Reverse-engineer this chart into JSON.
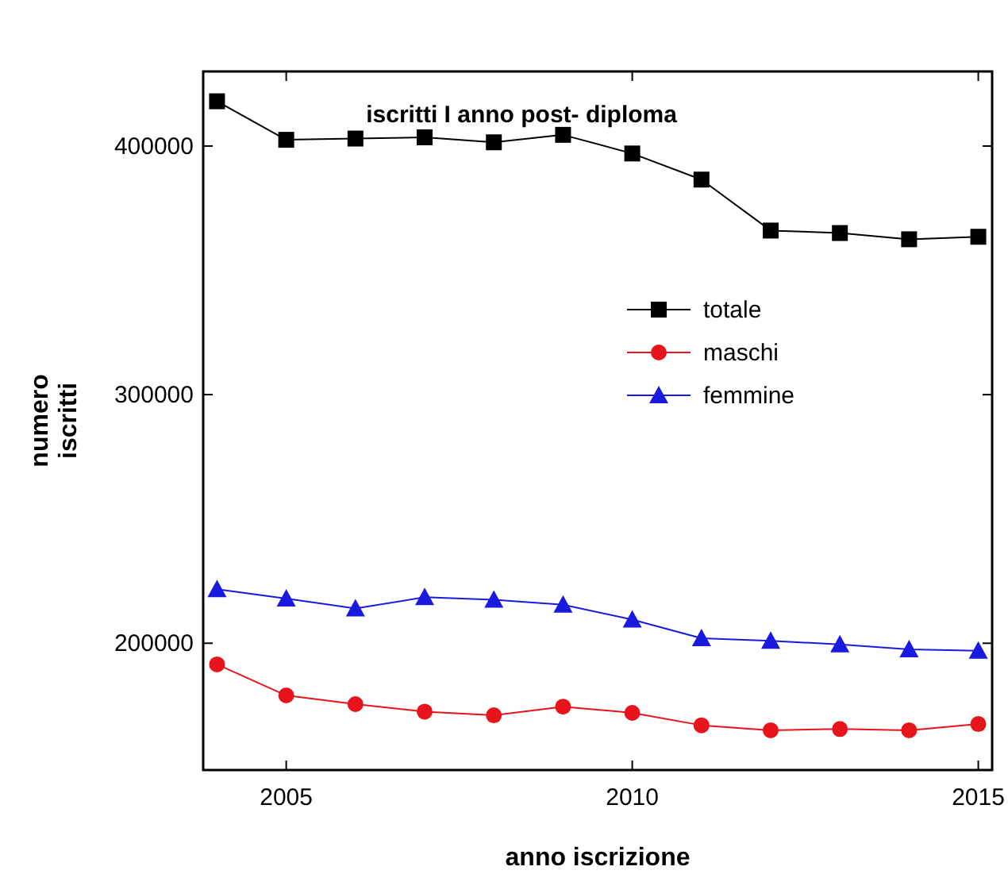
{
  "chart_data": {
    "type": "line",
    "title": "iscritti I anno post- diploma",
    "xlabel": "anno iscrizione",
    "ylabel": "numero iscritti",
    "x": [
      2004,
      2005,
      2006,
      2007,
      2008,
      2009,
      2010,
      2011,
      2012,
      2013,
      2014,
      2015
    ],
    "series": [
      {
        "name": "totale",
        "color": "#000000",
        "marker": "square",
        "values": [
          418000,
          402500,
          403000,
          403500,
          401500,
          404500,
          397000,
          386500,
          366000,
          365000,
          362500,
          363500
        ]
      },
      {
        "name": "maschi",
        "color": "#e8141b",
        "marker": "circle",
        "values": [
          191500,
          179000,
          175500,
          172500,
          171000,
          174500,
          172000,
          167000,
          165000,
          165500,
          165000,
          167500
        ]
      },
      {
        "name": "femmine",
        "color": "#1a1adf",
        "marker": "triangle",
        "values": [
          221700,
          218000,
          214000,
          218500,
          217500,
          215500,
          209500,
          202000,
          201000,
          199500,
          197500,
          197000
        ]
      }
    ],
    "xlim": [
      2003.8,
      2015.2
    ],
    "xticks": [
      2005,
      2010,
      2015
    ],
    "ylim": [
      149000,
      430000
    ],
    "yticks": [
      200000,
      300000,
      400000
    ],
    "grid": false,
    "legend": "right",
    "line_style": "solid"
  }
}
